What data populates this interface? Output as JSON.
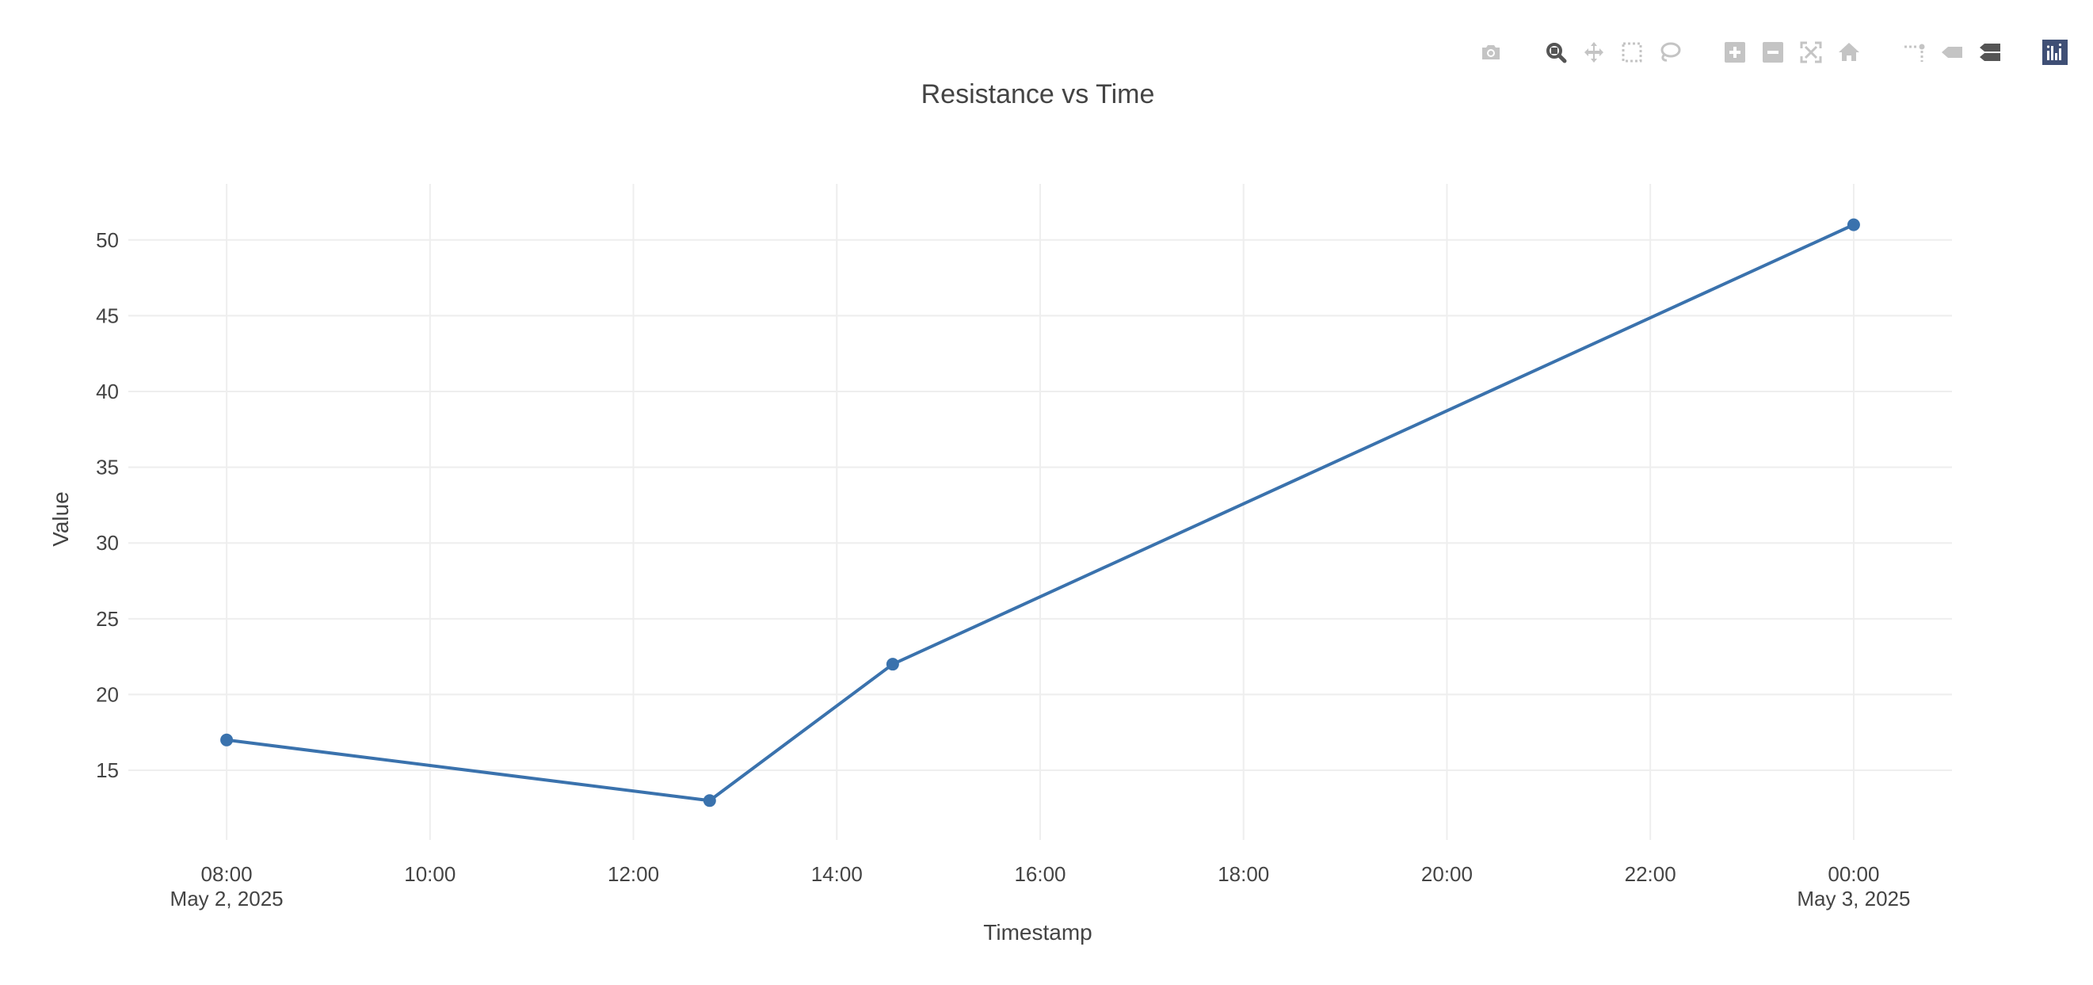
{
  "modebar": {
    "groups": [
      [
        "camera-icon"
      ],
      [
        "zoom-icon",
        "pan-icon",
        "box-select-icon",
        "lasso-select-icon"
      ],
      [
        "zoom-in-icon",
        "zoom-out-icon",
        "autoscale-icon",
        "reset-axes-icon"
      ],
      [
        "spike-lines-icon",
        "hover-closest-icon",
        "hover-compare-icon"
      ],
      [
        "plotly-logo-icon"
      ]
    ],
    "active": "zoom-icon"
  },
  "colors": {
    "line": "#3a72ad",
    "grid": "#eeeeee",
    "text": "#444444",
    "title": "#444444",
    "modebar_icon": "#c4c4c4",
    "modebar_active": "#555555",
    "logo_bg": "#3f4f75"
  },
  "chart_data": {
    "type": "line",
    "title": "Resistance vs Time",
    "xlabel": "Timestamp",
    "ylabel": "Value",
    "x": [
      "2025-05-02 08:00",
      "2025-05-02 12:45",
      "2025-05-02 14:33",
      "2025-05-03 00:00"
    ],
    "values": [
      17,
      13,
      22,
      51
    ],
    "markers": true,
    "xlim": [
      "2025-05-02 07:02",
      "2025-05-03 00:58"
    ],
    "ylim": [
      10.4,
      53.7
    ],
    "x_ticks": [
      {
        "t": "2025-05-02 08:00",
        "label": "08:00",
        "sub": "May 2, 2025"
      },
      {
        "t": "2025-05-02 10:00",
        "label": "10:00",
        "sub": ""
      },
      {
        "t": "2025-05-02 12:00",
        "label": "12:00",
        "sub": ""
      },
      {
        "t": "2025-05-02 14:00",
        "label": "14:00",
        "sub": ""
      },
      {
        "t": "2025-05-02 16:00",
        "label": "16:00",
        "sub": ""
      },
      {
        "t": "2025-05-02 18:00",
        "label": "18:00",
        "sub": ""
      },
      {
        "t": "2025-05-02 20:00",
        "label": "20:00",
        "sub": ""
      },
      {
        "t": "2025-05-02 22:00",
        "label": "22:00",
        "sub": ""
      },
      {
        "t": "2025-05-03 00:00",
        "label": "00:00",
        "sub": "May 3, 2025"
      }
    ],
    "y_ticks": [
      15,
      20,
      25,
      30,
      35,
      40,
      45,
      50
    ],
    "grid": true,
    "legend": "none"
  }
}
